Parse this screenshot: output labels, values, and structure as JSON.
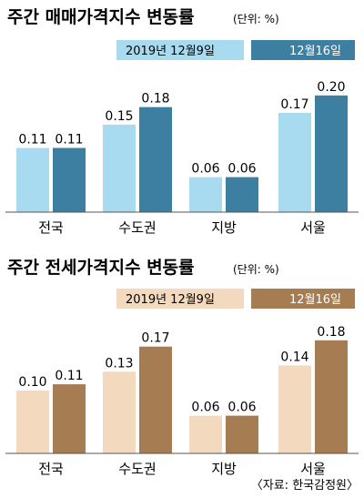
{
  "chart_data": [
    {
      "type": "bar",
      "title": "주간 매매가격지수 변동률",
      "unit": "(단위: %)",
      "categories": [
        "전국",
        "수도권",
        "지방",
        "서울"
      ],
      "series": [
        {
          "name": "2019년 12월9일",
          "values": [
            0.11,
            0.15,
            0.06,
            0.17
          ],
          "labels": [
            "0.11",
            "0.15",
            "0.06",
            "0.17"
          ],
          "color": "#a9dbf0"
        },
        {
          "name": "12월16일",
          "values": [
            0.11,
            0.18,
            0.06,
            0.2
          ],
          "labels": [
            "0.11",
            "0.18",
            "0.06",
            "0.20"
          ],
          "color": "#3d7fa0"
        }
      ],
      "ylim": [
        0,
        0.22
      ],
      "legend_position": "top-right",
      "grid": false
    },
    {
      "type": "bar",
      "title": "주간 전세가격지수 변동률",
      "unit": "(단위: %)",
      "categories": [
        "전국",
        "수도권",
        "지방",
        "서울"
      ],
      "series": [
        {
          "name": "2019년 12월9일",
          "values": [
            0.1,
            0.13,
            0.06,
            0.14
          ],
          "labels": [
            "0.10",
            "0.13",
            "0.06",
            "0.14"
          ],
          "color": "#f3d9bd"
        },
        {
          "name": "12월16일",
          "values": [
            0.11,
            0.17,
            0.06,
            0.18
          ],
          "labels": [
            "0.11",
            "0.17",
            "0.06",
            "0.18"
          ],
          "color": "#a67c53"
        }
      ],
      "ylim": [
        0,
        0.2
      ],
      "legend_position": "top-right",
      "grid": false
    }
  ],
  "source": "〈자료: 한국감정원〉"
}
